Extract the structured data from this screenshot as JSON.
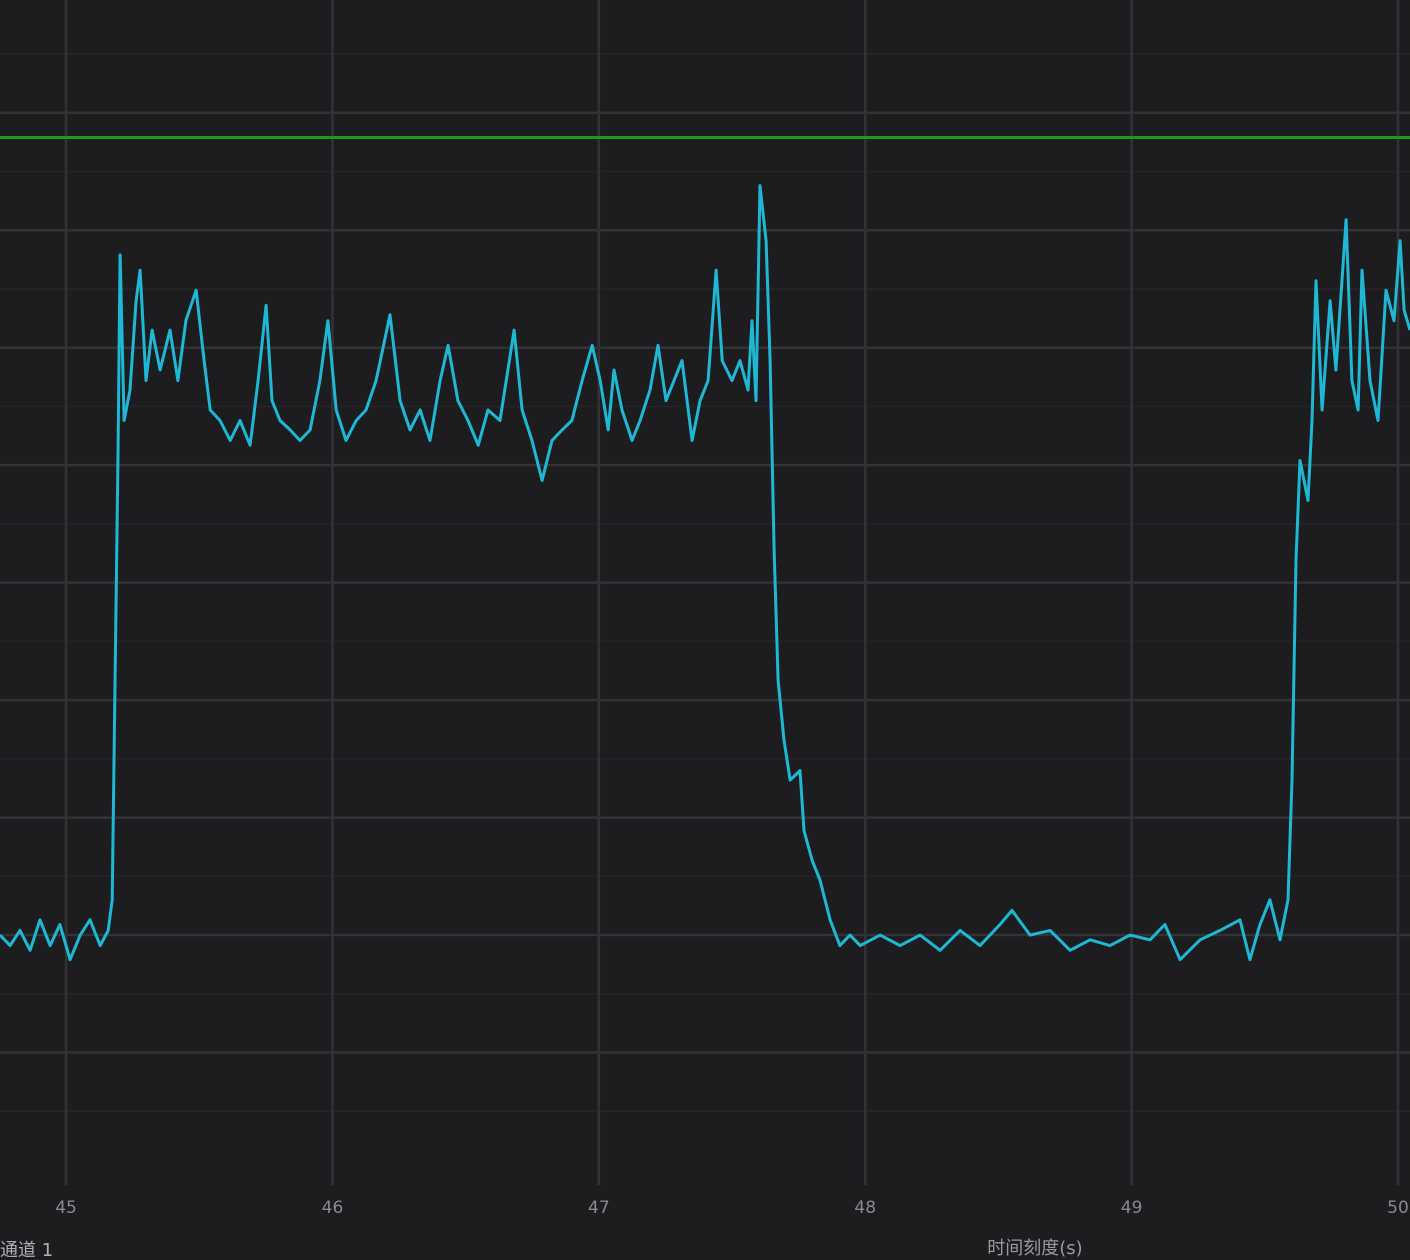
{
  "chart_data": {
    "type": "line",
    "title": "",
    "xlabel": "时间刻度(s)",
    "ylabel": "",
    "corner_label": "通道 1",
    "xlim": [
      44.752,
      50.045
    ],
    "ylim": [
      0,
      9.96
    ],
    "xticks": [
      45,
      46,
      47,
      48,
      49,
      50
    ],
    "yticks_unlabeled": [
      1,
      2,
      3,
      4,
      5,
      6,
      7,
      8,
      9
    ],
    "grid": true,
    "background_color": "#1d1d20",
    "grid_color": "#333336",
    "threshold": {
      "y": 8.79,
      "color": "#1f9a1f"
    },
    "series": [
      {
        "color": "#1fb8d4",
        "points": [
          [
            44.752,
            2.0
          ],
          [
            44.79,
            1.91
          ],
          [
            44.827,
            2.04
          ],
          [
            44.865,
            1.87
          ],
          [
            44.902,
            2.13
          ],
          [
            44.94,
            1.91
          ],
          [
            44.977,
            2.09
          ],
          [
            45.015,
            1.79
          ],
          [
            45.053,
            2.0
          ],
          [
            45.09,
            2.13
          ],
          [
            45.128,
            1.91
          ],
          [
            45.158,
            2.04
          ],
          [
            45.173,
            2.3
          ],
          [
            45.188,
            4.85
          ],
          [
            45.195,
            6.09
          ],
          [
            45.203,
            7.79
          ],
          [
            45.218,
            6.38
          ],
          [
            45.24,
            6.64
          ],
          [
            45.263,
            7.4
          ],
          [
            45.278,
            7.66
          ],
          [
            45.3,
            6.72
          ],
          [
            45.323,
            7.15
          ],
          [
            45.353,
            6.81
          ],
          [
            45.39,
            7.15
          ],
          [
            45.42,
            6.72
          ],
          [
            45.45,
            7.23
          ],
          [
            45.488,
            7.49
          ],
          [
            45.518,
            6.89
          ],
          [
            45.541,
            6.47
          ],
          [
            45.578,
            6.38
          ],
          [
            45.616,
            6.21
          ],
          [
            45.653,
            6.38
          ],
          [
            45.691,
            6.17
          ],
          [
            45.721,
            6.72
          ],
          [
            45.751,
            7.36
          ],
          [
            45.773,
            6.55
          ],
          [
            45.803,
            6.38
          ],
          [
            45.841,
            6.3
          ],
          [
            45.878,
            6.21
          ],
          [
            45.916,
            6.3
          ],
          [
            45.953,
            6.72
          ],
          [
            45.983,
            7.23
          ],
          [
            46.014,
            6.47
          ],
          [
            46.051,
            6.21
          ],
          [
            46.089,
            6.38
          ],
          [
            46.126,
            6.47
          ],
          [
            46.164,
            6.72
          ],
          [
            46.216,
            7.28
          ],
          [
            46.254,
            6.55
          ],
          [
            46.291,
            6.3
          ],
          [
            46.329,
            6.47
          ],
          [
            46.366,
            6.21
          ],
          [
            46.404,
            6.72
          ],
          [
            46.434,
            7.02
          ],
          [
            46.471,
            6.55
          ],
          [
            46.509,
            6.38
          ],
          [
            46.547,
            6.17
          ],
          [
            46.584,
            6.47
          ],
          [
            46.629,
            6.38
          ],
          [
            46.682,
            7.15
          ],
          [
            46.712,
            6.47
          ],
          [
            46.749,
            6.21
          ],
          [
            46.787,
            5.87
          ],
          [
            46.824,
            6.21
          ],
          [
            46.862,
            6.3
          ],
          [
            46.899,
            6.38
          ],
          [
            46.937,
            6.72
          ],
          [
            46.975,
            7.02
          ],
          [
            47.005,
            6.72
          ],
          [
            47.035,
            6.3
          ],
          [
            47.057,
            6.81
          ],
          [
            47.087,
            6.47
          ],
          [
            47.125,
            6.21
          ],
          [
            47.155,
            6.38
          ],
          [
            47.192,
            6.64
          ],
          [
            47.222,
            7.02
          ],
          [
            47.252,
            6.55
          ],
          [
            47.282,
            6.72
          ],
          [
            47.312,
            6.89
          ],
          [
            47.35,
            6.21
          ],
          [
            47.38,
            6.55
          ],
          [
            47.41,
            6.72
          ],
          [
            47.44,
            7.66
          ],
          [
            47.463,
            6.89
          ],
          [
            47.5,
            6.72
          ],
          [
            47.53,
            6.89
          ],
          [
            47.56,
            6.64
          ],
          [
            47.575,
            7.23
          ],
          [
            47.59,
            6.55
          ],
          [
            47.605,
            8.38
          ],
          [
            47.628,
            7.91
          ],
          [
            47.643,
            6.89
          ],
          [
            47.658,
            5.28
          ],
          [
            47.673,
            4.17
          ],
          [
            47.695,
            3.66
          ],
          [
            47.718,
            3.32
          ],
          [
            47.755,
            3.4
          ],
          [
            47.77,
            2.89
          ],
          [
            47.8,
            2.64
          ],
          [
            47.83,
            2.47
          ],
          [
            47.868,
            2.13
          ],
          [
            47.905,
            1.91
          ],
          [
            47.943,
            2.0
          ],
          [
            47.981,
            1.91
          ],
          [
            48.056,
            2.0
          ],
          [
            48.131,
            1.91
          ],
          [
            48.206,
            2.0
          ],
          [
            48.281,
            1.87
          ],
          [
            48.356,
            2.04
          ],
          [
            48.431,
            1.91
          ],
          [
            48.506,
            2.09
          ],
          [
            48.551,
            2.21
          ],
          [
            48.619,
            2.0
          ],
          [
            48.694,
            2.04
          ],
          [
            48.769,
            1.87
          ],
          [
            48.844,
            1.96
          ],
          [
            48.919,
            1.91
          ],
          [
            48.994,
            2.0
          ],
          [
            49.069,
            1.96
          ],
          [
            49.125,
            2.09
          ],
          [
            49.182,
            1.79
          ],
          [
            49.257,
            1.96
          ],
          [
            49.332,
            2.04
          ],
          [
            49.407,
            2.13
          ],
          [
            49.444,
            1.79
          ],
          [
            49.482,
            2.09
          ],
          [
            49.519,
            2.3
          ],
          [
            49.557,
            1.96
          ],
          [
            49.587,
            2.3
          ],
          [
            49.602,
            3.32
          ],
          [
            49.617,
            5.19
          ],
          [
            49.632,
            6.04
          ],
          [
            49.662,
            5.7
          ],
          [
            49.677,
            6.38
          ],
          [
            49.692,
            7.57
          ],
          [
            49.715,
            6.47
          ],
          [
            49.745,
            7.4
          ],
          [
            49.767,
            6.81
          ],
          [
            49.805,
            8.09
          ],
          [
            49.827,
            6.72
          ],
          [
            49.85,
            6.47
          ],
          [
            49.865,
            7.66
          ],
          [
            49.895,
            6.72
          ],
          [
            49.925,
            6.38
          ],
          [
            49.955,
            7.49
          ],
          [
            49.985,
            7.23
          ],
          [
            50.008,
            7.91
          ],
          [
            50.023,
            7.32
          ],
          [
            50.045,
            7.15
          ]
        ]
      }
    ]
  }
}
